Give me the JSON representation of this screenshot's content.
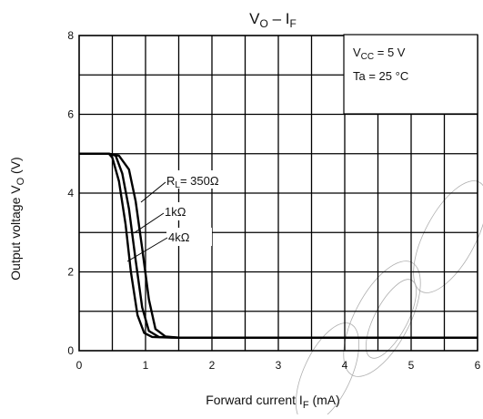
{
  "chart_data": {
    "type": "line",
    "title": {
      "main": "V",
      "main_sub": "O",
      "dash": " – ",
      "x": "I",
      "x_sub": "F"
    },
    "xlabel": {
      "text": "Forward current",
      "sym": "I",
      "sym_sub": "F",
      "unit": "(mA)"
    },
    "ylabel": {
      "text": "Output voltage",
      "sym": "V",
      "sym_sub": "O",
      "unit": "(V)"
    },
    "xlim": [
      0,
      6
    ],
    "ylim": [
      0,
      8
    ],
    "x_ticks": [
      "0",
      "1",
      "2",
      "3",
      "4",
      "5",
      "6"
    ],
    "y_ticks": [
      "0",
      "2",
      "4",
      "6",
      "8"
    ],
    "grid": true,
    "conditions": [
      {
        "sym": "V",
        "sub": "CC",
        "rest": " = 5 V"
      },
      {
        "sym": "Ta = 25 °C",
        "sub": "",
        "rest": ""
      }
    ],
    "series": [
      {
        "name": "350Ω",
        "label": {
          "pre": "R",
          "sub": "L",
          "post": "= 350Ω"
        },
        "x": [
          0,
          0.45,
          0.6,
          0.75,
          0.85,
          0.95,
          1.05,
          1.15,
          1.3,
          1.5,
          2,
          3,
          4,
          5,
          6
        ],
        "y": [
          5.0,
          5.0,
          4.95,
          4.6,
          3.8,
          2.6,
          1.3,
          0.55,
          0.36,
          0.33,
          0.33,
          0.33,
          0.33,
          0.33,
          0.33
        ]
      },
      {
        "name": "1kΩ",
        "label": {
          "pre": "1kΩ",
          "sub": "",
          "post": ""
        },
        "x": [
          0,
          0.45,
          0.55,
          0.65,
          0.75,
          0.85,
          0.95,
          1.05,
          1.2,
          1.5,
          2,
          3,
          4,
          5,
          6
        ],
        "y": [
          5.0,
          5.0,
          4.95,
          4.5,
          3.6,
          2.3,
          1.1,
          0.5,
          0.35,
          0.33,
          0.33,
          0.33,
          0.33,
          0.33,
          0.33
        ]
      },
      {
        "name": "4kΩ",
        "label": {
          "pre": "4kΩ",
          "sub": "",
          "post": ""
        },
        "x": [
          0,
          0.45,
          0.5,
          0.6,
          0.7,
          0.78,
          0.88,
          0.98,
          1.1,
          1.4,
          2,
          3,
          4,
          5,
          6
        ],
        "y": [
          5.0,
          5.0,
          4.9,
          4.3,
          3.2,
          2.0,
          0.9,
          0.45,
          0.35,
          0.33,
          0.33,
          0.33,
          0.33,
          0.33,
          0.33
        ]
      }
    ]
  }
}
